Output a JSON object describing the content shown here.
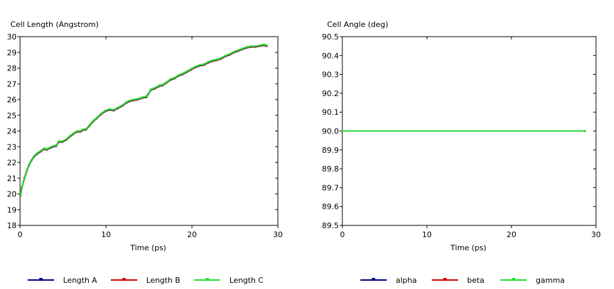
{
  "chart_data": [
    {
      "type": "line",
      "ylabel": "Cell Length (Angstrom)",
      "xlabel": "Time (ps)",
      "xlim": [
        0,
        30
      ],
      "ylim": [
        18,
        30
      ],
      "xticks": [
        0,
        10,
        20,
        30
      ],
      "yticks": [
        18,
        19,
        20,
        21,
        22,
        23,
        24,
        25,
        26,
        27,
        28,
        29,
        30
      ],
      "grid": false,
      "legend_position": "bottom",
      "x": [
        0.05,
        0.2,
        0.5,
        0.8,
        1.0,
        1.3,
        1.6,
        2.0,
        2.4,
        2.8,
        3.1,
        3.6,
        4.2,
        4.5,
        4.9,
        5.4,
        5.8,
        6.2,
        6.6,
        7.0,
        7.3,
        7.7,
        8.1,
        8.5,
        8.9,
        9.4,
        9.9,
        10.4,
        10.9,
        11.4,
        11.9,
        12.4,
        12.8,
        13.2,
        13.7,
        14.2,
        14.7,
        15.2,
        15.7,
        16.2,
        16.6,
        17.0,
        17.5,
        18.0,
        18.4,
        18.9,
        19.4,
        19.9,
        20.4,
        20.9,
        21.4,
        21.9,
        22.4,
        22.9,
        23.4,
        23.9,
        24.4,
        24.9,
        25.4,
        25.9,
        26.4,
        26.9,
        27.4,
        27.9,
        28.4,
        28.7
      ],
      "series": [
        {
          "name": "Length A",
          "color": "#000080",
          "values": [
            19.9,
            20.4,
            21.0,
            21.5,
            21.8,
            22.1,
            22.35,
            22.55,
            22.7,
            22.85,
            22.8,
            22.95,
            23.05,
            23.3,
            23.3,
            23.45,
            23.65,
            23.8,
            23.95,
            23.95,
            24.05,
            24.1,
            24.35,
            24.6,
            24.8,
            25.05,
            25.25,
            25.35,
            25.3,
            25.45,
            25.6,
            25.8,
            25.9,
            25.95,
            26.0,
            26.1,
            26.15,
            26.6,
            26.7,
            26.85,
            26.9,
            27.05,
            27.25,
            27.35,
            27.5,
            27.6,
            27.75,
            27.9,
            28.05,
            28.15,
            28.2,
            28.35,
            28.45,
            28.5,
            28.6,
            28.75,
            28.85,
            29.0,
            29.1,
            29.2,
            29.3,
            29.35,
            29.35,
            29.4,
            29.45,
            29.4
          ]
        },
        {
          "name": "Length B",
          "color": "#cc0000",
          "values": [
            19.92,
            20.42,
            21.02,
            21.52,
            21.82,
            22.12,
            22.37,
            22.57,
            22.72,
            22.87,
            22.82,
            22.97,
            23.07,
            23.32,
            23.32,
            23.47,
            23.67,
            23.82,
            23.97,
            23.97,
            24.07,
            24.12,
            24.37,
            24.62,
            24.82,
            25.07,
            25.27,
            25.37,
            25.32,
            25.47,
            25.62,
            25.82,
            25.92,
            25.97,
            26.02,
            26.12,
            26.17,
            26.62,
            26.72,
            26.87,
            26.92,
            27.07,
            27.27,
            27.37,
            27.52,
            27.62,
            27.77,
            27.92,
            28.07,
            28.17,
            28.22,
            28.37,
            28.47,
            28.52,
            28.62,
            28.77,
            28.87,
            29.02,
            29.12,
            29.22,
            29.32,
            29.37,
            29.37,
            29.42,
            29.47,
            29.42
          ]
        },
        {
          "name": "Length C",
          "color": "#22dd33",
          "values": [
            19.95,
            20.45,
            21.05,
            21.55,
            21.85,
            22.15,
            22.4,
            22.6,
            22.75,
            22.9,
            22.85,
            23.0,
            23.1,
            23.35,
            23.35,
            23.5,
            23.7,
            23.85,
            24.0,
            24.0,
            24.1,
            24.15,
            24.4,
            24.65,
            24.85,
            25.1,
            25.3,
            25.4,
            25.35,
            25.5,
            25.65,
            25.85,
            25.95,
            26.0,
            26.05,
            26.15,
            26.2,
            26.65,
            26.75,
            26.9,
            26.95,
            27.1,
            27.3,
            27.4,
            27.55,
            27.65,
            27.8,
            27.95,
            28.1,
            28.2,
            28.25,
            28.4,
            28.5,
            28.55,
            28.65,
            28.8,
            28.9,
            29.05,
            29.15,
            29.25,
            29.35,
            29.4,
            29.4,
            29.45,
            29.5,
            29.45
          ]
        }
      ]
    },
    {
      "type": "line",
      "ylabel": "Cell Angle (deg)",
      "xlabel": "Time (ps)",
      "xlim": [
        0,
        30
      ],
      "ylim": [
        89.5,
        90.5
      ],
      "xticks": [
        0,
        10,
        20,
        30
      ],
      "yticks": [
        89.5,
        89.6,
        89.7,
        89.8,
        89.9,
        90.0,
        90.1,
        90.2,
        90.3,
        90.4,
        90.5
      ],
      "ytick_labels": [
        "89.5",
        "89.6",
        "89.7",
        "89.8",
        "89.9",
        "90.0",
        "90.1",
        "90.2",
        "90.3",
        "90.4",
        "90.5"
      ],
      "grid": false,
      "legend_position": "bottom",
      "x": [
        0,
        28.7
      ],
      "series": [
        {
          "name": "alpha",
          "color": "#000080",
          "values": [
            90.0,
            90.0
          ]
        },
        {
          "name": "beta",
          "color": "#cc0000",
          "values": [
            90.0,
            90.0
          ]
        },
        {
          "name": "gamma",
          "color": "#22dd33",
          "values": [
            90.0,
            90.0
          ]
        }
      ]
    }
  ]
}
